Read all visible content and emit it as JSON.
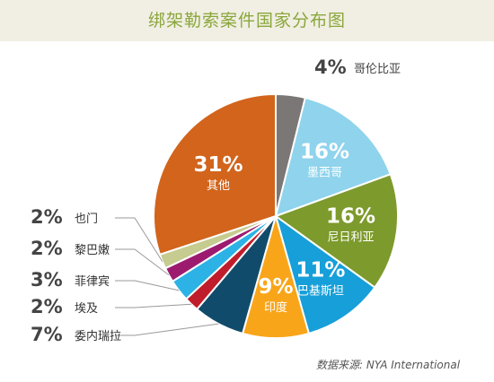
{
  "chart_data": {
    "type": "pie",
    "title": "绑架勒索案件国家分布图",
    "source": "数据来源: NYA International",
    "slices": [
      {
        "pct": "4%",
        "name": "哥伦比亚",
        "value": 4,
        "color": "#7a7776"
      },
      {
        "pct": "16%",
        "name": "墨西哥",
        "value": 16,
        "color": "#8fd3ec"
      },
      {
        "pct": "16%",
        "name": "尼日利亚",
        "value": 16,
        "color": "#7d9a2c"
      },
      {
        "pct": "11%",
        "name": "巴基斯坦",
        "value": 11,
        "color": "#179fd9"
      },
      {
        "pct": "9%",
        "name": "印度",
        "value": 9,
        "color": "#f9a51a"
      },
      {
        "pct": "7%",
        "name": "委内瑞拉",
        "value": 7,
        "color": "#114b6b"
      },
      {
        "pct": "2%",
        "name": "埃及",
        "value": 2,
        "color": "#c01d2c"
      },
      {
        "pct": "3%",
        "name": "菲律宾",
        "value": 3,
        "color": "#2cb2e5"
      },
      {
        "pct": "2%",
        "name": "黎巴嫩",
        "value": 2,
        "color": "#9c1b6f"
      },
      {
        "pct": "2%",
        "name": "也门",
        "value": 2,
        "color": "#c6cb8f"
      },
      {
        "pct": "31%",
        "name": "其他",
        "value": 31,
        "color": "#d2641c"
      }
    ]
  }
}
